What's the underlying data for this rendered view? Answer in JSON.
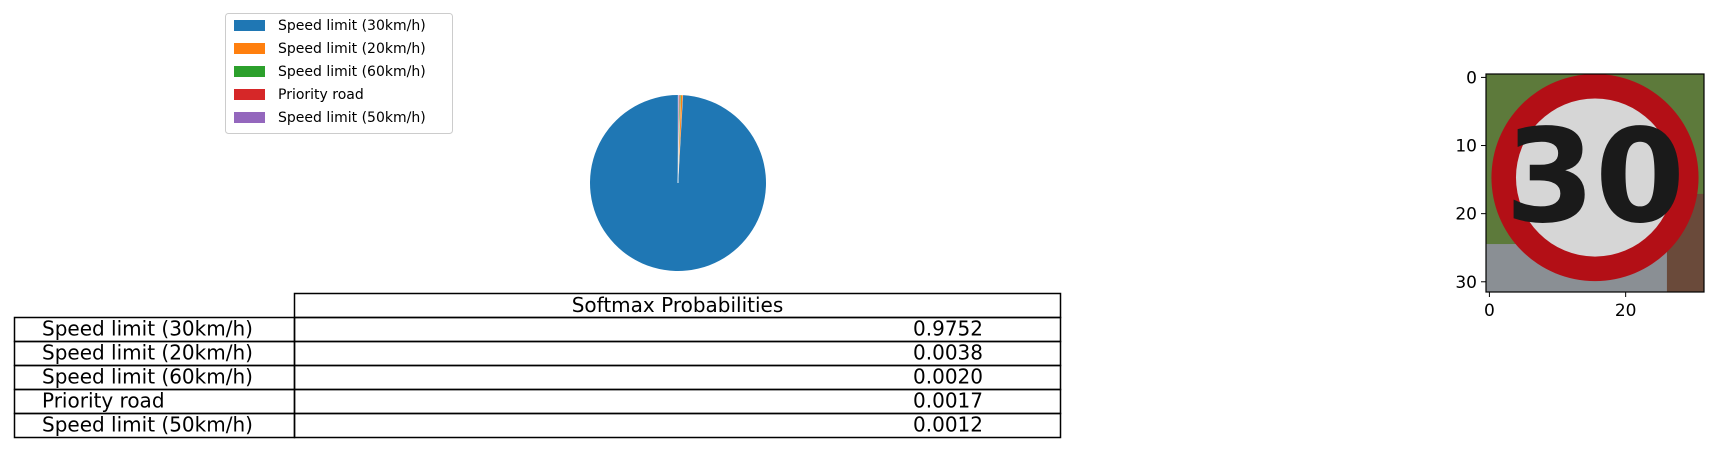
{
  "chart_data": [
    {
      "type": "pie",
      "labels": [
        "Speed limit (30km/h)",
        "Speed limit (20km/h)",
        "Speed limit (60km/h)",
        "Priority road",
        "Speed limit (50km/h)"
      ],
      "values": [
        0.9752,
        0.0038,
        0.002,
        0.0017,
        0.0012
      ],
      "colors": [
        "#1f77b4",
        "#ff7f0e",
        "#2ca02c",
        "#d62728",
        "#9467bd"
      ],
      "legend_position": "upper-left",
      "start_angle_deg": 90,
      "direction": "counterclockwise"
    },
    {
      "type": "table",
      "column_header": "Softmax Probabilities",
      "row_labels": [
        "Speed limit (30km/h)",
        "Speed limit (20km/h)",
        "Speed limit (60km/h)",
        "Priority road",
        "Speed limit (50km/h)"
      ],
      "cells": [
        "0.9752",
        "0.0038",
        "0.0020",
        "0.0017",
        "0.0012"
      ]
    },
    {
      "type": "image",
      "content": "traffic sign: red circle with the number 30",
      "sign_text": "30",
      "ring_color": "#b30f16",
      "face_color": "#d6d6d6",
      "digit_color": "#1a1a1a",
      "background_color": "#5d7a3b",
      "x_ticks": [
        "0",
        "20"
      ],
      "y_ticks": [
        "0",
        "10",
        "20",
        "30"
      ],
      "xlim": [
        -0.5,
        31.5
      ],
      "ylim": [
        31.5,
        -0.5
      ]
    }
  ]
}
